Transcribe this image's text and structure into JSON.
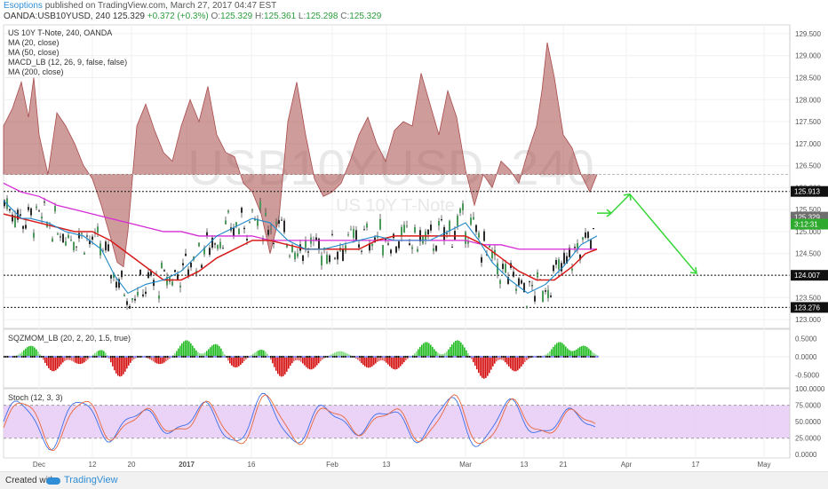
{
  "header": {
    "author": "Esoptions",
    "published": " published on TradingView.com, March 27, 2017 04:47 EST",
    "symbol": "OANDA:USB10YUSD, 240",
    "price": " 125.329 ",
    "change": "+0.372 (+0.3%)",
    "o_label": " O:",
    "o_value": "125.329",
    "h_label": " H:",
    "h_value": "125.361",
    "l_label": " L:",
    "l_value": "125.298",
    "c_label": " C:",
    "c_value": "125.329"
  },
  "legend": {
    "title": "US 10Y T-Note, 240, OANDA",
    "items": [
      "MA (20, close)",
      "MA (50, close)",
      "MACD_LB (12, 26, 9, false, false)",
      "MA (200, close)"
    ]
  },
  "watermark": {
    "symbol": "USB10YUSD, 240",
    "name": "US 10Y T-Note"
  },
  "price_axis": {
    "ticks": [
      "129.500",
      "129.000",
      "128.500",
      "128.000",
      "127.500",
      "127.000",
      "126.500",
      "126.000",
      "125.500",
      "125.000",
      "124.500",
      "124.000",
      "123.500",
      "123.000"
    ],
    "labels": [
      {
        "text": "125.913",
        "value": 125.913
      },
      {
        "text": "125.329",
        "value": 125.329
      },
      {
        "text": "3:12:31",
        "value": 125.17
      },
      {
        "text": "124.007",
        "value": 124.007
      },
      {
        "text": "123.276",
        "value": 123.276
      }
    ]
  },
  "osc_axis": {
    "ticks": [
      "0.5000",
      "0.0000",
      "-0.5000"
    ],
    "label": "SQZMOM_LB (20, 2, 20, 1.5, true)"
  },
  "stoch_axis": {
    "ticks": [
      "100.0000",
      "75.0000",
      "50.0000",
      "25.0000",
      "0.0000"
    ],
    "label": "Stoch (12, 3, 3)"
  },
  "time_axis": {
    "labels": [
      "Dec",
      "12",
      "20",
      "2017",
      "16",
      "Feb",
      "13",
      "Mar",
      "13",
      "21",
      "Apr",
      "17",
      "May"
    ]
  },
  "footer": {
    "created": "Created with",
    "brand": "TradingView"
  },
  "colors": {
    "ma_short": "#1e88c8",
    "ma_mid": "#d81b1b",
    "ma_long": "#d62bd6",
    "macd_area": "#a84a4a",
    "arrow": "#36d636",
    "stoch_band": "#e6c8f5"
  },
  "chart_data": {
    "type": "candlestick",
    "symbol": "OANDA:USB10YUSD",
    "timeframe": "240",
    "ylim": [
      122.8,
      129.7
    ],
    "horizontal_levels": [
      125.913,
      124.007,
      123.276
    ],
    "ma_20": [
      [
        0,
        125.7
      ],
      [
        10,
        125.5
      ],
      [
        20,
        125.3
      ],
      [
        30,
        125.3
      ],
      [
        50,
        125.2
      ],
      [
        70,
        125.0
      ],
      [
        90,
        124.9
      ],
      [
        110,
        124.6
      ],
      [
        125,
        124.0
      ],
      [
        140,
        123.6
      ],
      [
        160,
        123.8
      ],
      [
        180,
        123.9
      ],
      [
        200,
        124.1
      ],
      [
        220,
        124.5
      ],
      [
        240,
        124.9
      ],
      [
        260,
        125.1
      ],
      [
        280,
        125.3
      ],
      [
        300,
        125.2
      ],
      [
        320,
        124.8
      ],
      [
        340,
        124.6
      ],
      [
        360,
        124.6
      ],
      [
        380,
        124.7
      ],
      [
        400,
        124.8
      ],
      [
        420,
        124.9
      ],
      [
        440,
        124.8
      ],
      [
        460,
        124.8
      ],
      [
        480,
        124.8
      ],
      [
        500,
        125.0
      ],
      [
        520,
        125.2
      ],
      [
        535,
        124.8
      ],
      [
        550,
        124.3
      ],
      [
        570,
        123.9
      ],
      [
        590,
        123.6
      ],
      [
        610,
        123.8
      ],
      [
        630,
        124.2
      ],
      [
        650,
        124.7
      ],
      [
        668,
        124.9
      ]
    ],
    "ma_50": [
      [
        0,
        125.4
      ],
      [
        20,
        125.3
      ],
      [
        40,
        125.2
      ],
      [
        60,
        125.1
      ],
      [
        80,
        125.0
      ],
      [
        100,
        125.0
      ],
      [
        120,
        124.8
      ],
      [
        140,
        124.5
      ],
      [
        160,
        124.2
      ],
      [
        180,
        123.9
      ],
      [
        200,
        123.9
      ],
      [
        220,
        124.1
      ],
      [
        240,
        124.4
      ],
      [
        260,
        124.6
      ],
      [
        280,
        124.8
      ],
      [
        300,
        124.8
      ],
      [
        320,
        124.7
      ],
      [
        340,
        124.6
      ],
      [
        360,
        124.6
      ],
      [
        380,
        124.6
      ],
      [
        400,
        124.6
      ],
      [
        420,
        124.8
      ],
      [
        440,
        124.9
      ],
      [
        460,
        124.9
      ],
      [
        480,
        124.9
      ],
      [
        500,
        124.9
      ],
      [
        520,
        124.9
      ],
      [
        540,
        124.7
      ],
      [
        560,
        124.4
      ],
      [
        580,
        124.1
      ],
      [
        600,
        123.9
      ],
      [
        620,
        123.9
      ],
      [
        640,
        124.2
      ],
      [
        655,
        124.5
      ],
      [
        668,
        124.6
      ]
    ],
    "ma_200": [
      [
        0,
        126.1
      ],
      [
        20,
        125.9
      ],
      [
        40,
        125.8
      ],
      [
        60,
        125.6
      ],
      [
        80,
        125.5
      ],
      [
        100,
        125.4
      ],
      [
        120,
        125.3
      ],
      [
        140,
        125.2
      ],
      [
        160,
        125.1
      ],
      [
        180,
        125.0
      ],
      [
        200,
        125.0
      ],
      [
        220,
        124.9
      ],
      [
        240,
        124.9
      ],
      [
        260,
        124.9
      ],
      [
        280,
        124.9
      ],
      [
        300,
        124.8
      ],
      [
        320,
        124.8
      ],
      [
        340,
        124.8
      ],
      [
        360,
        124.8
      ],
      [
        380,
        124.8
      ],
      [
        400,
        124.8
      ],
      [
        420,
        124.8
      ],
      [
        440,
        124.8
      ],
      [
        460,
        124.8
      ],
      [
        480,
        124.8
      ],
      [
        500,
        124.8
      ],
      [
        520,
        124.8
      ],
      [
        540,
        124.7
      ],
      [
        560,
        124.7
      ],
      [
        580,
        124.6
      ],
      [
        600,
        124.6
      ],
      [
        620,
        124.6
      ],
      [
        640,
        124.6
      ],
      [
        660,
        124.6
      ],
      [
        668,
        124.6
      ]
    ],
    "macd_area_top": [
      [
        0,
        127.4
      ],
      [
        10,
        127.8
      ],
      [
        20,
        128.4
      ],
      [
        28,
        127.6
      ],
      [
        34,
        128.5
      ],
      [
        40,
        127.2
      ],
      [
        50,
        126.3
      ],
      [
        60,
        127.7
      ],
      [
        70,
        127.4
      ],
      [
        80,
        127.0
      ],
      [
        90,
        126.5
      ],
      [
        100,
        126.2
      ],
      [
        110,
        125.6
      ],
      [
        120,
        124.9
      ],
      [
        128,
        124.3
      ],
      [
        135,
        124.2
      ],
      [
        140,
        125.0
      ],
      [
        150,
        127.4
      ],
      [
        160,
        127.9
      ],
      [
        170,
        127.3
      ],
      [
        180,
        126.8
      ],
      [
        190,
        126.6
      ],
      [
        200,
        127.4
      ],
      [
        210,
        128.0
      ],
      [
        220,
        127.5
      ],
      [
        230,
        128.3
      ],
      [
        240,
        127.2
      ],
      [
        250,
        126.8
      ],
      [
        260,
        126.7
      ],
      [
        270,
        126.1
      ],
      [
        280,
        125.9
      ],
      [
        290,
        125.4
      ],
      [
        300,
        124.5
      ],
      [
        310,
        125.3
      ],
      [
        320,
        127.5
      ],
      [
        330,
        128.4
      ],
      [
        340,
        127.2
      ],
      [
        350,
        126.2
      ],
      [
        360,
        125.8
      ],
      [
        370,
        125.9
      ],
      [
        380,
        126.1
      ],
      [
        390,
        126.6
      ],
      [
        400,
        127.2
      ],
      [
        410,
        127.6
      ],
      [
        420,
        127.0
      ],
      [
        430,
        126.6
      ],
      [
        440,
        127.3
      ],
      [
        450,
        127.5
      ],
      [
        460,
        127.4
      ],
      [
        470,
        128.6
      ],
      [
        480,
        127.9
      ],
      [
        490,
        127.2
      ],
      [
        500,
        128.2
      ],
      [
        510,
        127.6
      ],
      [
        520,
        126.4
      ],
      [
        530,
        125.6
      ],
      [
        540,
        126.3
      ],
      [
        550,
        126.0
      ],
      [
        560,
        126.6
      ],
      [
        570,
        126.4
      ],
      [
        580,
        126.1
      ],
      [
        590,
        126.8
      ],
      [
        600,
        127.4
      ],
      [
        606,
        128.2
      ],
      [
        612,
        129.3
      ],
      [
        620,
        128.5
      ],
      [
        630,
        127.2
      ],
      [
        640,
        126.9
      ],
      [
        650,
        126.3
      ],
      [
        660,
        125.9
      ],
      [
        668,
        126.3
      ]
    ],
    "projection": [
      [
        668,
        125.42
      ],
      [
        684,
        125.42
      ],
      [
        705,
        125.85
      ],
      [
        780,
        124.05
      ]
    ],
    "oscillator_ylim": [
      -0.85,
      0.75
    ],
    "stoch_ylim": [
      -5,
      100
    ],
    "stoch_band": [
      25,
      75
    ]
  }
}
